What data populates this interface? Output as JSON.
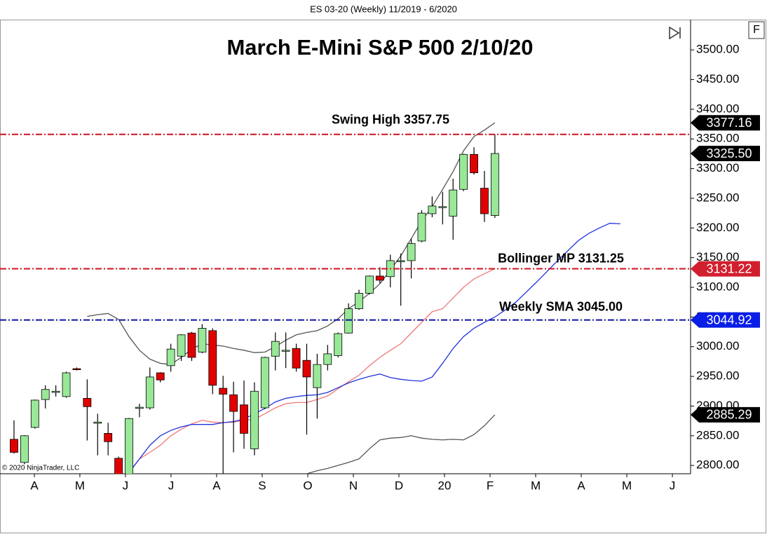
{
  "chart_data": {
    "type": "candlestick",
    "header": "ES 03-20 (Weekly)  11/2019 - 6/2020",
    "title": "March E-Mini S&P 500 2/10/20",
    "copyright": "© 2020 NinjaTrader, LLC",
    "panel_button": "F",
    "xlim": [
      -1.34,
      64.72
    ],
    "xticks": [
      {
        "value": 1.95,
        "label": "A"
      },
      {
        "value": 6.3,
        "label": "M"
      },
      {
        "value": 10.66,
        "label": "J"
      },
      {
        "value": 15.02,
        "label": "J"
      },
      {
        "value": 19.38,
        "label": "A"
      },
      {
        "value": 23.74,
        "label": "S"
      },
      {
        "value": 28.1,
        "label": "O"
      },
      {
        "value": 32.46,
        "label": "N"
      },
      {
        "value": 36.82,
        "label": "D"
      },
      {
        "value": 41.18,
        "label": "20"
      },
      {
        "value": 45.54,
        "label": "F"
      },
      {
        "value": 49.9,
        "label": "M"
      },
      {
        "value": 54.26,
        "label": "A"
      },
      {
        "value": 58.62,
        "label": "M"
      },
      {
        "value": 62.98,
        "label": "J"
      }
    ],
    "ylim": [
      2786,
      3551
    ],
    "yticks": [
      {
        "value": 2800,
        "label": "2800.00"
      },
      {
        "value": 2850,
        "label": "2850.00"
      },
      {
        "value": 2900,
        "label": "2900.00"
      },
      {
        "value": 2950,
        "label": "2950.00"
      },
      {
        "value": 3000,
        "label": "3000.00"
      },
      {
        "value": 3050,
        "label": "3050.00"
      },
      {
        "value": 3100,
        "label": "3100.00"
      },
      {
        "value": 3150,
        "label": "3150.00"
      },
      {
        "value": 3200,
        "label": "3200.00"
      },
      {
        "value": 3250,
        "label": "3250.00"
      },
      {
        "value": 3300,
        "label": "3300.00"
      },
      {
        "value": 3350,
        "label": "3350.00"
      },
      {
        "value": 3400,
        "label": "3400.00"
      },
      {
        "value": 3450,
        "label": "3450.00"
      },
      {
        "value": 3500,
        "label": "3500.00"
      }
    ],
    "up_color": "#98e898",
    "down_color": "#e00000",
    "x": [
      0,
      1,
      2,
      3,
      4,
      5,
      6,
      7,
      8,
      9,
      10,
      11,
      12,
      13,
      14,
      15,
      16,
      17,
      18,
      19,
      20,
      21,
      22,
      23,
      24,
      25,
      26,
      27,
      28,
      29,
      30,
      31,
      32,
      33,
      34,
      35,
      36,
      37,
      38,
      39,
      40,
      41,
      42,
      43,
      44,
      45,
      46
    ],
    "open": [
      2844,
      2805,
      2864,
      2911,
      2923,
      2916,
      2963,
      2913,
      2871,
      2854,
      2812,
      2770,
      2896,
      2897,
      2956,
      2968,
      2984,
      3023,
      2991,
      3027,
      2930,
      2919,
      2902,
      2828,
      2897,
      2984,
      2993,
      2997,
      2977,
      2931,
      2970,
      2985,
      3023,
      3064,
      3090,
      3119,
      3118,
      3144,
      3145,
      3178,
      3224,
      3235,
      3220,
      3265,
      3324,
      3267,
      3221
    ],
    "high": [
      2876,
      2851,
      2911,
      2935,
      2935,
      2958,
      2965,
      2945,
      2887,
      2872,
      2815,
      2880,
      2904,
      2965,
      2957,
      3005,
      3021,
      3025,
      3038,
      3031,
      2951,
      2941,
      2943,
      2940,
      2983,
      3024,
      3024,
      3005,
      3005,
      2988,
      3003,
      3024,
      3073,
      3096,
      3120,
      3134,
      3155,
      3157,
      3182,
      3230,
      3253,
      3261,
      3283,
      3325,
      3336,
      3296,
      3357.75
    ],
    "low": [
      2820,
      2802,
      2862,
      2896,
      2916,
      2914,
      2960,
      2842,
      2817,
      2817,
      2760,
      2755,
      2881,
      2894,
      2940,
      2958,
      2976,
      2976,
      2989,
      2920,
      2780,
      2822,
      2828,
      2817,
      2895,
      2960,
      2964,
      2958,
      2852,
      2879,
      2960,
      2982,
      3022,
      3062,
      3088,
      3107,
      3100,
      3069,
      3115,
      3176,
      3218,
      3206,
      3180,
      3262,
      3290,
      3210,
      3217
    ],
    "close": [
      2822,
      2850,
      2910,
      2928,
      2925,
      2956,
      2962,
      2899,
      2873,
      2840,
      2775,
      2879,
      2898,
      2949,
      2944,
      2996,
      3020,
      2982,
      3031,
      2935,
      2920,
      2891,
      2854,
      2925,
      2982,
      3009,
      2994,
      2964,
      2949,
      2970,
      2988,
      3022,
      3064,
      3090,
      3119,
      3112,
      3145,
      3145,
      3174,
      3225,
      3237,
      3236,
      3264,
      3324,
      3293,
      3224,
      3325.5
    ],
    "series": [
      {
        "color": "#555555",
        "x": [
          7,
          8,
          9,
          10,
          11,
          12,
          13,
          14,
          15,
          16,
          17,
          18,
          19,
          20,
          21,
          22,
          23,
          24,
          25,
          26,
          27,
          28,
          29,
          30,
          31,
          32,
          33,
          34,
          35,
          36,
          37,
          38,
          39,
          40,
          41,
          42,
          43,
          44,
          45,
          46
        ],
        "values": [
          3051,
          3054,
          3056,
          3046,
          3017,
          2994,
          2979,
          2972,
          2970,
          2982,
          2996,
          3005,
          3003,
          3001,
          2997,
          2994,
          2990,
          2991,
          3000,
          3011,
          3020,
          3024,
          3027,
          3035,
          3047,
          3064,
          3076,
          3090,
          3106,
          3129,
          3153,
          3182,
          3212,
          3236,
          3265,
          3295,
          3330,
          3354,
          3365,
          3377.16
        ]
      },
      {
        "color": "#f07878",
        "x": [
          11,
          12,
          13,
          14,
          15,
          16,
          17,
          18,
          19,
          20,
          21,
          22,
          23,
          24,
          25,
          26,
          27,
          28,
          29,
          30,
          31,
          32,
          33,
          34,
          35,
          36,
          37,
          38,
          39,
          40,
          41,
          42,
          43,
          44,
          45,
          46
        ],
        "values": [
          2788,
          2811,
          2822,
          2834,
          2850,
          2861,
          2870,
          2876,
          2873,
          2872,
          2873,
          2876,
          2878,
          2887,
          2897,
          2904,
          2906,
          2906,
          2911,
          2917,
          2929,
          2941,
          2952,
          2968,
          2982,
          2994,
          3005,
          3023,
          3041,
          3059,
          3064,
          3082,
          3100,
          3114,
          3123,
          3131.22
        ]
      },
      {
        "color": "#555555",
        "x": [
          28,
          29,
          30,
          31,
          32,
          33,
          34,
          35,
          36,
          37,
          38,
          39,
          40,
          41,
          42,
          43,
          44,
          45,
          46
        ],
        "values": [
          2786,
          2791,
          2795,
          2800,
          2805,
          2811,
          2828,
          2843,
          2846,
          2847,
          2850,
          2846,
          2844,
          2843,
          2844,
          2843,
          2852,
          2867,
          2885.29
        ]
      },
      {
        "color": "#2233dd",
        "x": [
          11,
          12,
          13,
          14,
          15,
          16,
          17,
          18,
          19,
          20,
          21,
          22,
          23,
          24,
          25,
          26,
          27,
          28,
          29,
          30,
          31,
          32,
          33,
          34,
          35,
          36,
          37,
          38,
          39,
          40,
          41,
          42,
          43,
          44,
          45,
          46,
          47,
          48,
          49,
          50,
          51,
          52,
          53,
          54,
          55,
          56,
          57,
          58
        ],
        "values": [
          2788,
          2811,
          2834,
          2850,
          2859,
          2865,
          2869,
          2869,
          2869,
          2872,
          2874,
          2878,
          2887,
          2896,
          2907,
          2913,
          2916,
          2918,
          2919,
          2923,
          2931,
          2939,
          2945,
          2950,
          2954,
          2948,
          2945,
          2943,
          2942,
          2949,
          2972,
          2997,
          3017,
          3031,
          3041,
          3050,
          3062,
          3075,
          3092,
          3109,
          3127,
          3145,
          3162,
          3179,
          3191,
          3200,
          3208,
          3207
        ]
      }
    ],
    "hlines": [
      {
        "value": 3357.75,
        "color": "#d01020",
        "label": "Swing High 3357.75"
      },
      {
        "value": 3131.25,
        "color": "#d01020",
        "label": "Bollinger MP 3131.25"
      },
      {
        "value": 3045.0,
        "color": "#1010a0",
        "label": "Weekly SMA 3045.00"
      }
    ],
    "price_markers": [
      {
        "value": 3377.16,
        "label": "3377.16",
        "color": "#000000"
      },
      {
        "value": 3325.5,
        "label": "3325.50",
        "color": "#000000"
      },
      {
        "value": 3131.22,
        "label": "3131.22",
        "color": "#d21f2f"
      },
      {
        "value": 3044.92,
        "label": "3044.92",
        "color": "#0a1ee6"
      },
      {
        "value": 2885.29,
        "label": "2885.29",
        "color": "#000000"
      }
    ]
  }
}
